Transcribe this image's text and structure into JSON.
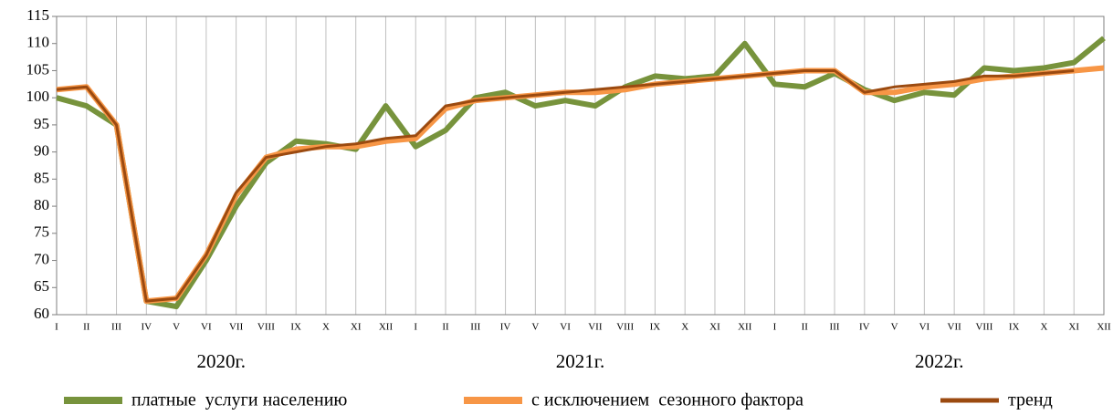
{
  "chart_data": {
    "type": "line",
    "categories": [
      "I",
      "II",
      "III",
      "IV",
      "V",
      "VI",
      "VII",
      "VIII",
      "IX",
      "X",
      "XI",
      "XII",
      "I",
      "II",
      "III",
      "IV",
      "V",
      "VI",
      "VII",
      "VIII",
      "IX",
      "X",
      "XI",
      "XII",
      "I",
      "II",
      "III",
      "IV",
      "V",
      "VI",
      "VII",
      "VIII",
      "IX",
      "X",
      "XI",
      "XII"
    ],
    "years": [
      "2020г.",
      "2021г.",
      "2022г."
    ],
    "series": [
      {
        "name": "платные  услуги населению",
        "color": "#77933c",
        "width": 6,
        "values": [
          100,
          98.5,
          95,
          62.5,
          61.5,
          70,
          80,
          88,
          92,
          91.5,
          90.5,
          98.5,
          91,
          94,
          100,
          101,
          98.5,
          99.5,
          98.5,
          102,
          104,
          103.5,
          104,
          110,
          102.5,
          102,
          104.5,
          101.5,
          99.5,
          101,
          100.5,
          105.5,
          105,
          105.5,
          106.5,
          111
        ]
      },
      {
        "name": "с исключением  сезонного фактора",
        "color": "#f79646",
        "width": 6,
        "values": [
          101.5,
          102,
          95,
          62.5,
          63,
          71,
          82,
          89,
          90.5,
          91,
          91,
          92,
          92.5,
          98,
          99.5,
          100,
          100.5,
          101,
          101,
          101.5,
          102.5,
          103,
          103.5,
          104,
          104.5,
          105,
          105,
          101,
          101,
          102,
          102.5,
          103.5,
          104,
          104.5,
          105,
          105.5
        ]
      },
      {
        "name": "тренд",
        "color": "#9b4a10",
        "width": 3,
        "values": [
          101.5,
          102,
          95,
          62.5,
          63,
          71,
          82.5,
          89,
          90,
          91,
          91.5,
          92.5,
          93,
          98.5,
          99.5,
          100,
          100.5,
          101,
          101.5,
          102,
          102.5,
          103,
          103.5,
          104,
          104.5,
          105,
          105,
          101,
          102,
          102.5,
          103,
          104,
          104,
          104.5,
          105,
          null
        ]
      }
    ],
    "ylim": [
      60,
      115
    ],
    "yticks": [
      60,
      65,
      70,
      75,
      80,
      85,
      90,
      95,
      100,
      105,
      110,
      115
    ],
    "grid": "x",
    "legend": "bottom"
  }
}
